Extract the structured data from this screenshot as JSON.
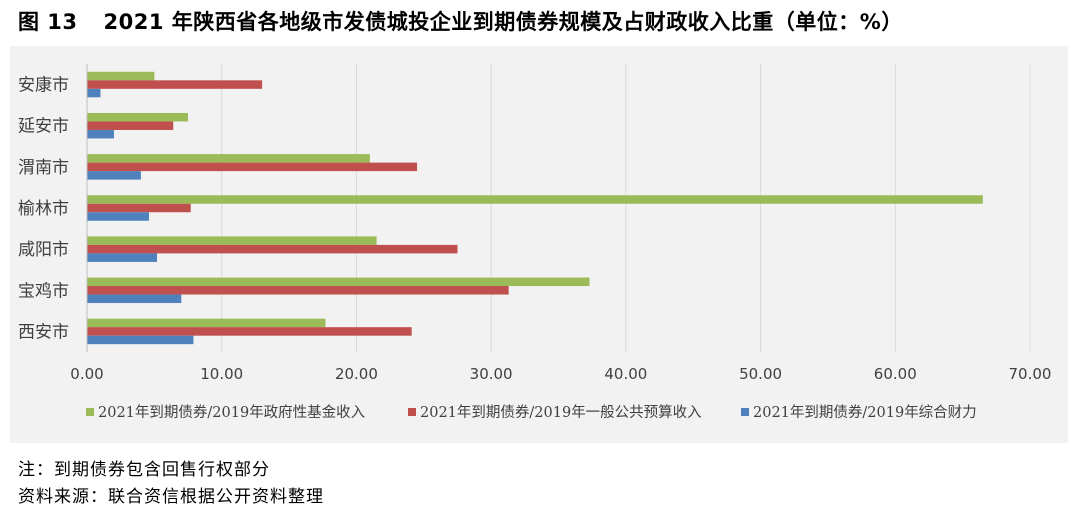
{
  "title": {
    "figure": "图 13",
    "text": "2021 年陕西省各地级市发债城投企业到期债券规模及占财政收入比重（单位：%）"
  },
  "notes": {
    "note": "注：到期债券包含回售行权部分",
    "source": "资料来源：联合资信根据公开资料整理"
  },
  "chart_data": {
    "type": "bar",
    "orientation": "horizontal",
    "categories": [
      "安康市",
      "延安市",
      "渭南市",
      "榆林市",
      "咸阳市",
      "宝鸡市",
      "西安市"
    ],
    "series": [
      {
        "name": "2021年到期债券/2019年政府性基金收入",
        "color": "#9bbb59",
        "values": [
          5.0,
          7.5,
          21.0,
          66.5,
          21.5,
          37.3,
          17.7
        ]
      },
      {
        "name": "2021年到期债券/2019年一般公共预算收入",
        "color": "#c0504d",
        "values": [
          13.0,
          6.4,
          24.5,
          7.7,
          27.5,
          31.3,
          24.1
        ]
      },
      {
        "name": "2021年到期债券/2019年综合财力",
        "color": "#4f81bd",
        "values": [
          1.0,
          2.0,
          4.0,
          4.6,
          5.2,
          7.0,
          7.9
        ]
      }
    ],
    "xlim": [
      0,
      70
    ],
    "xticks": [
      "0.00",
      "10.00",
      "20.00",
      "30.00",
      "40.00",
      "50.00",
      "60.00",
      "70.00"
    ],
    "grid": true,
    "legend": "bottom"
  }
}
